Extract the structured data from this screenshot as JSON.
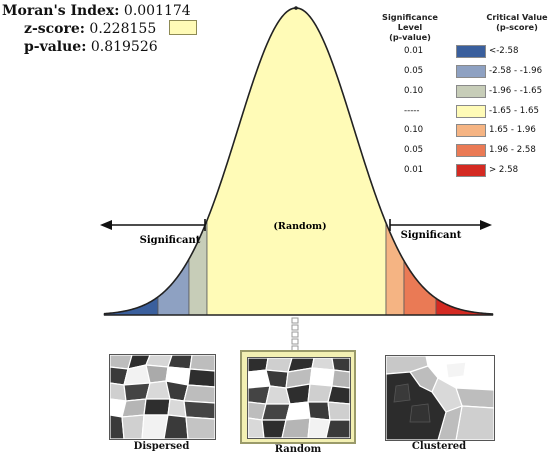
{
  "stats": {
    "morans_label": "Moran's Index:",
    "morans_value": "0.001174",
    "z_label": "z-score:",
    "z_value": "0.228155",
    "p_label": "p-value:",
    "p_value": "0.819526"
  },
  "curve": {
    "center_label": "(Random)",
    "left_label": "Significant",
    "right_label": "Significant"
  },
  "legend": {
    "sig_header_1": "Significance Level",
    "sig_header_2": "(p-value)",
    "cv_header_1": "Critical Value",
    "cv_header_2": "(p-score)",
    "rows": [
      {
        "sig": "0.01",
        "range": "<-2.58",
        "color": "#3a5f9d"
      },
      {
        "sig": "0.05",
        "range": "-2.58 - -1.96",
        "color": "#8ea1c2"
      },
      {
        "sig": "0.10",
        "range": "-1.96 - -1.65",
        "color": "#c7cdb8"
      },
      {
        "sig": "-----",
        "range": "-1.65 - 1.65",
        "color": "#fffbb7"
      },
      {
        "sig": "0.10",
        "range": "1.65 - 1.96",
        "color": "#f5b483"
      },
      {
        "sig": "0.05",
        "range": "1.96 - 2.58",
        "color": "#ea7a55"
      },
      {
        "sig": "0.01",
        "range": "> 2.58",
        "color": "#d42a22"
      }
    ]
  },
  "maps": {
    "dispersed_label": "Dispersed",
    "random_label": "Random",
    "clustered_label": "Clustered"
  },
  "colors": {
    "curve_fill": "#fffbb7",
    "outline": "#222222",
    "arrow": "#111111",
    "highlight_frame": "#f3f0b3"
  }
}
